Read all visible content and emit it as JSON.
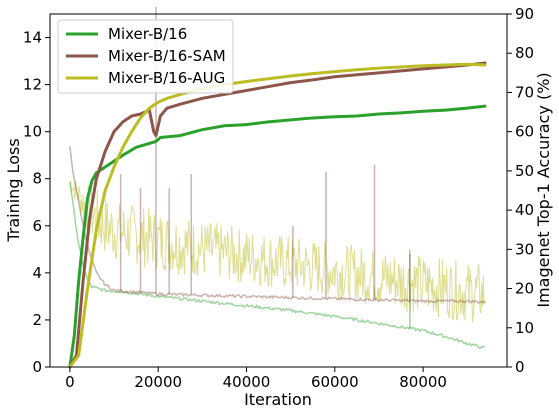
{
  "chart_data": {
    "type": "line",
    "title": "",
    "xlabel": "Iteration",
    "ylabel_left": "Training Loss",
    "ylabel_right": "Imagenet Top-1 Accuracy (%)",
    "xlim": [
      -4500,
      99000
    ],
    "ylim_left": [
      0,
      15
    ],
    "ylim_right": [
      0,
      90
    ],
    "x_ticks": [
      0,
      20000,
      40000,
      60000,
      80000
    ],
    "x_tick_labels": [
      "0",
      "20000",
      "40000",
      "60000",
      "80000"
    ],
    "y_left_ticks": [
      0,
      2,
      4,
      6,
      8,
      10,
      12,
      14
    ],
    "y_left_tick_labels": [
      "0",
      "2",
      "4",
      "6",
      "8",
      "10",
      "12",
      "14"
    ],
    "y_right_ticks": [
      0,
      10,
      20,
      30,
      40,
      50,
      60,
      70,
      80,
      90
    ],
    "y_right_tick_labels": [
      "0",
      "10",
      "20",
      "30",
      "40",
      "50",
      "60",
      "70",
      "80",
      "90"
    ],
    "grid": false,
    "legend": {
      "position": "top-left",
      "entries": [
        "Mixer-B/16",
        "Mixer-B/16-SAM",
        "Mixer-B/16-AUG"
      ]
    },
    "colors": {
      "Mixer-B/16": "#2ca02c",
      "Mixer-B/16-SAM": "#8c564b",
      "Mixer-B/16-AUG": "#bcbd22"
    },
    "accuracy_series": [
      {
        "name": "Mixer-B/16",
        "axis": "right",
        "points": [
          [
            0,
            0
          ],
          [
            1000,
            8
          ],
          [
            2000,
            22
          ],
          [
            3000,
            33
          ],
          [
            4000,
            43
          ],
          [
            5000,
            47.5
          ],
          [
            6000,
            49.5
          ],
          [
            8000,
            51
          ],
          [
            10000,
            52.5
          ],
          [
            12000,
            54
          ],
          [
            15000,
            56
          ],
          [
            18000,
            57
          ],
          [
            19500,
            57.5
          ],
          [
            20500,
            58.5
          ],
          [
            25000,
            59
          ],
          [
            30000,
            60.5
          ],
          [
            35000,
            61.5
          ],
          [
            40000,
            61.8
          ],
          [
            45000,
            62.5
          ],
          [
            50000,
            63
          ],
          [
            55000,
            63.5
          ],
          [
            60000,
            63.8
          ],
          [
            65000,
            64
          ],
          [
            70000,
            64.5
          ],
          [
            75000,
            64.8
          ],
          [
            80000,
            65.2
          ],
          [
            85000,
            65.5
          ],
          [
            90000,
            66
          ],
          [
            94000,
            66.5
          ]
        ]
      },
      {
        "name": "Mixer-B/16-SAM",
        "axis": "right",
        "points": [
          [
            0,
            0
          ],
          [
            1500,
            3
          ],
          [
            3000,
            22
          ],
          [
            4500,
            38
          ],
          [
            6000,
            48
          ],
          [
            8000,
            55
          ],
          [
            10000,
            60
          ],
          [
            12000,
            62.5
          ],
          [
            14000,
            64
          ],
          [
            16000,
            64.5
          ],
          [
            18000,
            65.5
          ],
          [
            19000,
            60
          ],
          [
            19500,
            59
          ],
          [
            20500,
            64
          ],
          [
            22000,
            66
          ],
          [
            25000,
            67
          ],
          [
            30000,
            68.5
          ],
          [
            35000,
            69.5
          ],
          [
            40000,
            70.5
          ],
          [
            45000,
            71.5
          ],
          [
            50000,
            72.5
          ],
          [
            55000,
            73.2
          ],
          [
            60000,
            74
          ],
          [
            65000,
            74.5
          ],
          [
            70000,
            75
          ],
          [
            75000,
            75.5
          ],
          [
            80000,
            76
          ],
          [
            85000,
            76.5
          ],
          [
            90000,
            77
          ],
          [
            94000,
            77.5
          ]
        ]
      },
      {
        "name": "Mixer-B/16-AUG",
        "axis": "right",
        "points": [
          [
            0,
            0
          ],
          [
            2000,
            3
          ],
          [
            4000,
            20
          ],
          [
            6000,
            35
          ],
          [
            8000,
            45
          ],
          [
            10000,
            51
          ],
          [
            12000,
            56
          ],
          [
            14000,
            60
          ],
          [
            16000,
            63.5
          ],
          [
            18000,
            66
          ],
          [
            20000,
            67.5
          ],
          [
            22000,
            68.5
          ],
          [
            25000,
            69.5
          ],
          [
            30000,
            71
          ],
          [
            35000,
            72
          ],
          [
            40000,
            72.8
          ],
          [
            45000,
            73.5
          ],
          [
            50000,
            74.2
          ],
          [
            55000,
            74.8
          ],
          [
            60000,
            75.3
          ],
          [
            65000,
            75.8
          ],
          [
            70000,
            76.2
          ],
          [
            75000,
            76.5
          ],
          [
            80000,
            76.8
          ],
          [
            85000,
            77
          ],
          [
            90000,
            77.2
          ],
          [
            94000,
            77
          ]
        ]
      }
    ],
    "loss_series": [
      {
        "name": "Mixer-B/16",
        "axis": "left",
        "points": [
          [
            0,
            7.9
          ],
          [
            1000,
            6.5
          ],
          [
            2000,
            5.2
          ],
          [
            3000,
            4.3
          ],
          [
            4000,
            3.7
          ],
          [
            5000,
            3.4
          ],
          [
            8000,
            3.25
          ],
          [
            12000,
            3.2
          ],
          [
            20000,
            3.0
          ],
          [
            30000,
            2.8
          ],
          [
            40000,
            2.6
          ],
          [
            50000,
            2.4
          ],
          [
            60000,
            2.15
          ],
          [
            70000,
            1.85
          ],
          [
            80000,
            1.55
          ],
          [
            85000,
            1.3
          ],
          [
            90000,
            1.0
          ],
          [
            94000,
            0.8
          ]
        ],
        "spikes": [
          [
            77000,
            5.0
          ]
        ]
      },
      {
        "name": "Mixer-B/16-SAM",
        "axis": "left",
        "points": [
          [
            0,
            9.4
          ],
          [
            500,
            8.5
          ],
          [
            1500,
            7.5
          ],
          [
            3000,
            6.0
          ],
          [
            4500,
            4.8
          ],
          [
            6000,
            4.0
          ],
          [
            8000,
            3.5
          ],
          [
            10000,
            3.25
          ],
          [
            14000,
            3.2
          ],
          [
            20000,
            3.1
          ],
          [
            30000,
            3.05
          ],
          [
            40000,
            3.0
          ],
          [
            50000,
            2.95
          ],
          [
            60000,
            2.9
          ],
          [
            70000,
            2.85
          ],
          [
            80000,
            2.8
          ],
          [
            90000,
            2.8
          ],
          [
            94000,
            2.75
          ]
        ],
        "spikes": [
          [
            11500,
            8.2
          ],
          [
            16000,
            7.6
          ],
          [
            19500,
            15.3
          ],
          [
            22500,
            7.6
          ],
          [
            27500,
            8.2
          ],
          [
            50500,
            6.0
          ],
          [
            58000,
            8.3
          ],
          [
            69000,
            8.6
          ],
          [
            77000,
            4.8
          ]
        ]
      },
      {
        "name": "Mixer-B/16-AUG",
        "axis": "left",
        "points": [
          [
            0,
            7.9
          ],
          [
            2000,
            7.3
          ],
          [
            4000,
            6.7
          ],
          [
            6000,
            6.3
          ],
          [
            8000,
            6.0
          ],
          [
            10000,
            5.8
          ],
          [
            20000,
            5.4
          ],
          [
            30000,
            5.0
          ],
          [
            40000,
            4.7
          ],
          [
            50000,
            4.4
          ],
          [
            60000,
            4.1
          ],
          [
            70000,
            3.8
          ],
          [
            80000,
            3.5
          ],
          [
            90000,
            3.2
          ],
          [
            94000,
            3.1
          ]
        ],
        "noise_band": [
          [
            0,
            0.3
          ],
          [
            5000,
            1.3
          ],
          [
            20000,
            1.3
          ],
          [
            40000,
            1.2
          ],
          [
            60000,
            1.2
          ],
          [
            80000,
            1.3
          ],
          [
            94000,
            1.3
          ]
        ]
      }
    ]
  }
}
